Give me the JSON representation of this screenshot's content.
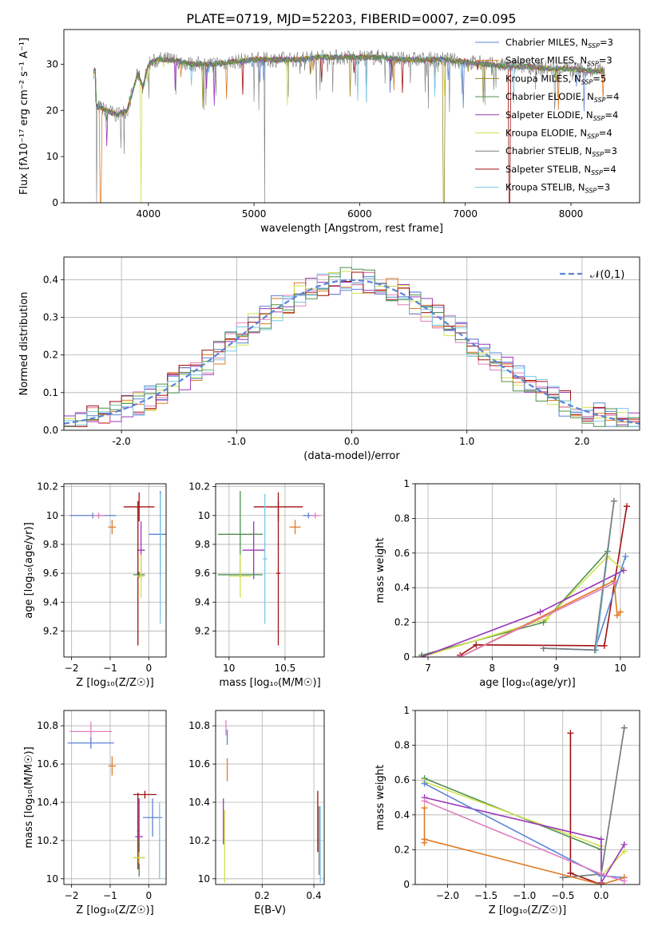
{
  "title": "PLATE=0719, MJD=52203, FIBERID=0007, z=0.095",
  "colors": {
    "chabrier_miles": "#5b84d6",
    "salpeter_miles": "#e07b27",
    "kroupa_miles": "#9a8a2a",
    "chabrier_elodie": "#4f8f4f",
    "salpeter_elodie": "#9b36b8",
    "kroupa_elodie": "#d2e24f",
    "chabrier_stelib": "#7a7a7a",
    "salpeter_stelib": "#a11010",
    "kroupa_stelib": "#79c8e6",
    "pink": "#e07fbe",
    "olive": "#a5c23a",
    "normal_curve": "#5b84d6"
  },
  "chart_data": [
    {
      "id": "spectrum",
      "type": "line",
      "xlabel": "wavelength [Angstrom, rest frame]",
      "ylabel": "Flux [fλ10⁻¹⁷ erg cm⁻² s⁻¹ A⁻¹]",
      "xlim": [
        3200,
        8650
      ],
      "ylim": [
        0,
        37.5
      ],
      "xticks": [
        4000,
        5000,
        6000,
        7000,
        8000
      ],
      "yticks": [
        0,
        10,
        20,
        30
      ],
      "legend_position": "top-right",
      "legend": [
        {
          "main": "Chabrier MILES, N",
          "sub": "SSP",
          "tail": "=3",
          "color": "chabrier_miles"
        },
        {
          "main": "Salpeter MILES, N",
          "sub": "SSP",
          "tail": "=3",
          "color": "salpeter_miles"
        },
        {
          "main": "Kroupa MILES, N",
          "sub": "SSP",
          "tail": "=5",
          "color": "kroupa_miles"
        },
        {
          "main": "Chabrier ELODIE, N",
          "sub": "SSP",
          "tail": "=4",
          "color": "chabrier_elodie"
        },
        {
          "main": "Salpeter ELODIE, N",
          "sub": "SSP",
          "tail": "=4",
          "color": "salpeter_elodie"
        },
        {
          "main": "Kroupa ELODIE, N",
          "sub": "SSP",
          "tail": "=4",
          "color": "kroupa_elodie"
        },
        {
          "main": "Chabrier STELIB, N",
          "sub": "SSP",
          "tail": "=3",
          "color": "chabrier_stelib"
        },
        {
          "main": "Salpeter STELIB, N",
          "sub": "SSP",
          "tail": "=4",
          "color": "salpeter_stelib"
        },
        {
          "main": "Kroupa STELIB, N",
          "sub": "SSP",
          "tail": "=3",
          "color": "kroupa_stelib"
        }
      ],
      "continuum": {
        "x": [
          3500,
          3600,
          3700,
          3800,
          3900,
          3950,
          4000,
          4100,
          4200,
          4400,
          4600,
          4800,
          5000,
          5200,
          5400,
          5600,
          5800,
          6000,
          6200,
          6400,
          6600,
          6800,
          7000,
          7200,
          7400,
          7600,
          7800,
          8000,
          8200,
          8300
        ],
        "y": [
          21,
          20,
          19,
          20,
          28,
          25,
          30,
          31,
          31,
          30,
          30,
          30.5,
          31,
          31,
          31,
          31.5,
          31.5,
          31.5,
          31.5,
          31,
          31,
          31,
          30.5,
          30,
          29.5,
          29.5,
          29,
          29,
          28.5,
          28.5
        ]
      },
      "dropouts": [
        {
          "series": "chabrier_stelib",
          "x": 5100
        },
        {
          "series": "kroupa_elodie",
          "x": 3930
        },
        {
          "series": "kroupa_miles",
          "x": 6800
        },
        {
          "series": "salpeter_stelib",
          "x": 7420
        },
        {
          "series": "salpeter_miles",
          "x": 3550
        },
        {
          "series": "chabrier_stelib",
          "x": 3510
        }
      ]
    },
    {
      "id": "residuals",
      "type": "line",
      "xlabel": "(data-model)/error",
      "ylabel": "Normed distribution",
      "xlim": [
        -2.5,
        2.5
      ],
      "ylim": [
        0,
        0.46
      ],
      "xticks": [
        -2,
        -1,
        0,
        1,
        2
      ],
      "yticks": [
        0.0,
        0.1,
        0.2,
        0.3,
        0.4
      ],
      "grid": true,
      "legend_position": "top-right",
      "normal_label": "𝒩(0,1)",
      "normal": {
        "mu": 0,
        "sigma": 1
      }
    },
    {
      "id": "age_vs_Z",
      "type": "scatter",
      "xlabel": "Z [log₁₀(Z/Z☉)]",
      "ylabel": "age [log₁₀(age/yr)]",
      "xlim": [
        -2.2,
        0.45
      ],
      "ylim": [
        9.02,
        10.22
      ],
      "xticks": [
        -2,
        -1,
        0
      ],
      "yticks": [
        9.2,
        9.4,
        9.6,
        9.8,
        10.0,
        10.2
      ],
      "grid": true,
      "points": [
        {
          "color": "chabrier_miles",
          "x": -1.45,
          "xerr": 0.6,
          "y": 10.0,
          "yerr": 0.02
        },
        {
          "color": "pink",
          "x": -1.3,
          "xerr": 0.15,
          "y": 10.0,
          "yerr": 0.02
        },
        {
          "color": "salpeter_miles",
          "x": -0.95,
          "xerr": 0.1,
          "y": 9.92,
          "yerr": 0.05
        },
        {
          "color": "salpeter_elodie",
          "x": -0.2,
          "xerr": 0.1,
          "y": 9.76,
          "yerr": 0.2
        },
        {
          "color": "salpeter_stelib",
          "x": -0.25,
          "xerr": 0.4,
          "y": 10.06,
          "yerr": 0.1
        },
        {
          "color": "salpeter_stelib",
          "x": -0.28,
          "xerr": 0.02,
          "y": 9.6,
          "yerr": 0.5
        },
        {
          "color": "chabrier_elodie",
          "x": -0.25,
          "xerr": 0.15,
          "y": 9.59,
          "yerr": 0.02
        },
        {
          "color": "kroupa_elodie",
          "x": -0.2,
          "xerr": 0.1,
          "y": 9.58,
          "yerr": 0.15
        },
        {
          "color": "chabrier_miles",
          "x": 0.3,
          "xerr": 0.3,
          "y": 9.87,
          "yerr": 0.3
        },
        {
          "color": "kroupa_stelib",
          "x": 0.3,
          "xerr": 0.02,
          "y": 9.7,
          "yerr": 0.45
        }
      ]
    },
    {
      "id": "age_vs_mass",
      "type": "scatter",
      "xlabel": "mass [log₁₀(M/M☉)]",
      "ylabel": "",
      "xlim": [
        9.88,
        10.85
      ],
      "ylim": [
        9.02,
        10.22
      ],
      "xticks": [
        10.0,
        10.5
      ],
      "yticks": [
        9.2,
        9.4,
        9.6,
        9.8,
        10.0,
        10.2
      ],
      "grid": true,
      "points": [
        {
          "color": "chabrier_miles",
          "x": 10.71,
          "xerr": 0.05,
          "y": 10.0,
          "yerr": 0.02
        },
        {
          "color": "pink",
          "x": 10.77,
          "xerr": 0.05,
          "y": 10.0,
          "yerr": 0.02
        },
        {
          "color": "salpeter_miles",
          "x": 10.59,
          "xerr": 0.05,
          "y": 9.92,
          "yerr": 0.05
        },
        {
          "color": "salpeter_stelib",
          "x": 10.44,
          "xerr": 0.22,
          "y": 10.06,
          "yerr": 0.1
        },
        {
          "color": "salpeter_stelib",
          "x": 10.44,
          "xerr": 0.02,
          "y": 9.6,
          "yerr": 0.5
        },
        {
          "color": "salpeter_elodie",
          "x": 10.22,
          "xerr": 0.1,
          "y": 9.76,
          "yerr": 0.2
        },
        {
          "color": "chabrier_elodie",
          "x": 10.1,
          "xerr": 0.2,
          "y": 9.87,
          "yerr": 0.3
        },
        {
          "color": "chabrier_elodie",
          "x": 10.1,
          "xerr": 0.2,
          "y": 9.59,
          "yerr": 0.02
        },
        {
          "color": "kroupa_elodie",
          "x": 10.1,
          "xerr": 0.1,
          "y": 9.58,
          "yerr": 0.15
        },
        {
          "color": "kroupa_stelib",
          "x": 10.32,
          "xerr": 0.02,
          "y": 9.7,
          "yerr": 0.45
        }
      ]
    },
    {
      "id": "weight_vs_age",
      "type": "line",
      "xlabel": "age [log₁₀(age/yr)]",
      "ylabel": "mass weight",
      "xlim": [
        6.8,
        10.3
      ],
      "ylim": [
        0,
        1.0
      ],
      "xticks": [
        7,
        8,
        9,
        10
      ],
      "yticks": [
        0.0,
        0.2,
        0.4,
        0.6,
        0.8,
        1.0
      ],
      "grid": true,
      "series": [
        {
          "color": "salpeter_stelib",
          "x": [
            7.5,
            7.75,
            9.75,
            10.1
          ],
          "y": [
            0.01,
            0.07,
            0.065,
            0.87
          ]
        },
        {
          "color": "chabrier_elodie",
          "x": [
            6.9,
            8.8,
            9.8
          ],
          "y": [
            0.01,
            0.2,
            0.61
          ]
        },
        {
          "color": "kroupa_elodie",
          "x": [
            6.9,
            8.85,
            9.8,
            10.05
          ],
          "y": [
            0.0,
            0.22,
            0.58,
            0.5
          ]
        },
        {
          "color": "salpeter_elodie",
          "x": [
            6.9,
            8.75,
            10.05
          ],
          "y": [
            0.0,
            0.26,
            0.5
          ]
        },
        {
          "color": "chabrier_miles",
          "x": [
            8.8,
            9.6,
            10.08
          ],
          "y": [
            0.05,
            0.04,
            0.58
          ]
        },
        {
          "color": "kroupa_stelib",
          "x": [
            8.8,
            9.62,
            9.9
          ],
          "y": [
            0.05,
            0.04,
            0.9
          ]
        },
        {
          "color": "chabrier_stelib",
          "x": [
            8.8,
            9.6,
            9.9
          ],
          "y": [
            0.05,
            0.04,
            0.9
          ]
        },
        {
          "color": "salpeter_miles",
          "x": [
            7.5,
            9.9,
            9.95,
            10.0
          ],
          "y": [
            0.0,
            0.44,
            0.24,
            0.26
          ]
        },
        {
          "color": "pink",
          "x": [
            7.5,
            9.92
          ],
          "y": [
            0.0,
            0.43
          ]
        }
      ]
    },
    {
      "id": "mass_vs_Z",
      "type": "scatter",
      "xlabel": "Z [log₁₀(Z/Z☉)]",
      "ylabel": "mass [log₁₀(M/M☉)]",
      "xlim": [
        -2.2,
        0.45
      ],
      "ylim": [
        9.97,
        10.88
      ],
      "xticks": [
        -2,
        -1,
        0
      ],
      "yticks": [
        10.0,
        10.2,
        10.4,
        10.6,
        10.8
      ],
      "grid": true,
      "points": [
        {
          "color": "pink",
          "x": -1.5,
          "xerr": 0.55,
          "y": 10.77,
          "yerr": 0.05
        },
        {
          "color": "chabrier_miles",
          "x": -1.5,
          "xerr": 0.6,
          "y": 10.71,
          "yerr": 0.03
        },
        {
          "color": "salpeter_miles",
          "x": -0.95,
          "xerr": 0.1,
          "y": 10.59,
          "yerr": 0.05
        },
        {
          "color": "salpeter_stelib",
          "x": -0.1,
          "xerr": 0.3,
          "y": 10.44,
          "yerr": 0.02
        },
        {
          "color": "salpeter_stelib",
          "x": -0.28,
          "xerr": 0.02,
          "y": 10.25,
          "yerr": 0.2
        },
        {
          "color": "salpeter_elodie",
          "x": -0.25,
          "xerr": 0.1,
          "y": 10.22,
          "yerr": 0.2
        },
        {
          "color": "chabrier_elodie",
          "x": -0.25,
          "xerr": 0.15,
          "y": 10.11,
          "yerr": 0.1
        },
        {
          "color": "kroupa_elodie",
          "x": -0.25,
          "xerr": 0.15,
          "y": 10.11,
          "yerr": 0.03
        },
        {
          "color": "chabrier_miles",
          "x": 0.1,
          "xerr": 0.25,
          "y": 10.32,
          "yerr": 0.1
        },
        {
          "color": "kroupa_stelib",
          "x": 0.28,
          "xerr": 0.02,
          "y": 10.2,
          "yerr": 0.2
        }
      ]
    },
    {
      "id": "mass_vs_ebv",
      "type": "scatter",
      "xlabel": "E(B-V)",
      "ylabel": "",
      "xlim": [
        0.02,
        0.44
      ],
      "ylim": [
        9.97,
        10.88
      ],
      "xticks": [
        0.2,
        0.4
      ],
      "yticks": [
        10.0,
        10.2,
        10.4,
        10.6,
        10.8
      ],
      "grid": true,
      "points": [
        {
          "color": "pink",
          "x": 0.06,
          "xerr": 0.0,
          "y": 10.79,
          "yerr": 0.04
        },
        {
          "color": "chabrier_miles",
          "x": 0.065,
          "xerr": 0.0,
          "y": 10.74,
          "yerr": 0.04
        },
        {
          "color": "salpeter_miles",
          "x": 0.065,
          "xerr": 0.0,
          "y": 10.57,
          "yerr": 0.06
        },
        {
          "color": "salpeter_elodie",
          "x": 0.05,
          "xerr": 0.0,
          "y": 10.3,
          "yerr": 0.12
        },
        {
          "color": "kroupa_elodie",
          "x": 0.055,
          "xerr": 0.0,
          "y": 10.17,
          "yerr": 0.19
        },
        {
          "color": "salpeter_stelib",
          "x": 0.415,
          "xerr": 0.0,
          "y": 10.3,
          "yerr": 0.16
        },
        {
          "color": "kroupa_stelib",
          "x": 0.425,
          "xerr": 0.0,
          "y": 10.18,
          "yerr": 0.2
        },
        {
          "color": "chabrier_stelib",
          "x": 0.42,
          "xerr": 0.0,
          "y": 10.2,
          "yerr": 0.18
        }
      ]
    },
    {
      "id": "weight_vs_Z",
      "type": "line",
      "xlabel": "Z [log₁₀(Z/Z☉)]",
      "ylabel": "mass weight",
      "xlim": [
        -2.42,
        0.5
      ],
      "ylim": [
        0,
        1.0
      ],
      "xticks": [
        -2.0,
        -1.5,
        -1.0,
        -0.5,
        0.0
      ],
      "xtick_labels": [
        "−2.0",
        "−1.5",
        "−1.0",
        "−0.5",
        "0.0"
      ],
      "yticks": [
        0.0,
        0.2,
        0.4,
        0.6,
        0.8,
        1.0
      ],
      "grid": true,
      "series": [
        {
          "color": "salpeter_stelib",
          "x": [
            -0.4,
            -0.4,
            0.0
          ],
          "y": [
            0.87,
            0.065,
            0.0
          ]
        },
        {
          "color": "chabrier_elodie",
          "x": [
            -2.3,
            0.0,
            0.0
          ],
          "y": [
            0.61,
            0.2,
            0.05
          ]
        },
        {
          "color": "kroupa_elodie",
          "x": [
            -2.3,
            0.0,
            0.0,
            0.3
          ],
          "y": [
            0.59,
            0.22,
            0.05,
            0.19
          ]
        },
        {
          "color": "salpeter_elodie",
          "x": [
            -2.3,
            0.0,
            0.0,
            0.3
          ],
          "y": [
            0.5,
            0.26,
            0.01,
            0.23
          ]
        },
        {
          "color": "chabrier_miles",
          "x": [
            -2.3,
            0.0,
            0.3
          ],
          "y": [
            0.58,
            0.05,
            0.04
          ]
        },
        {
          "color": "kroupa_stelib",
          "x": [
            -0.5,
            0.0,
            0.3
          ],
          "y": [
            0.04,
            0.06,
            0.9
          ]
        },
        {
          "color": "chabrier_stelib",
          "x": [
            -0.5,
            0.0,
            0.3
          ],
          "y": [
            0.04,
            0.06,
            0.9
          ]
        },
        {
          "color": "salpeter_miles",
          "x": [
            -2.3,
            -2.3,
            -2.3,
            0.0,
            0.3
          ],
          "y": [
            0.44,
            0.24,
            0.26,
            0.0,
            0.04
          ]
        },
        {
          "color": "pink",
          "x": [
            -2.3,
            0.0,
            0.3
          ],
          "y": [
            0.48,
            0.06,
            0.02
          ]
        }
      ]
    }
  ]
}
